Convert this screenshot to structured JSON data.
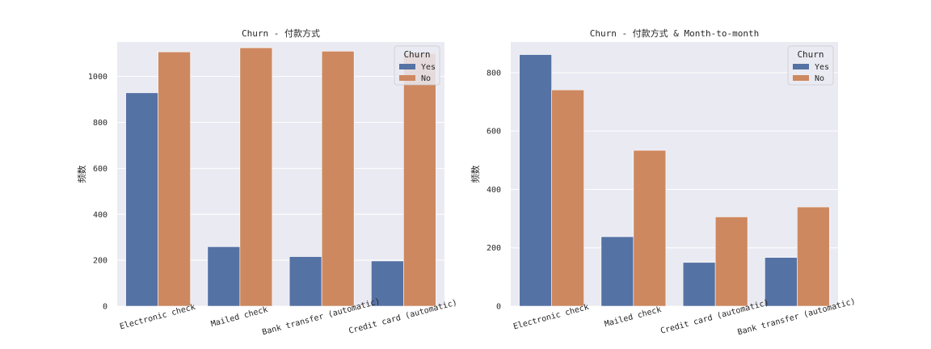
{
  "colors": {
    "yes": "#5572a4",
    "no": "#cd8860",
    "plot_bg": "#eaeaf2",
    "grid": "#ffffff"
  },
  "chart_data": [
    {
      "type": "bar",
      "title": "Churn - 付款方式",
      "xlabel": "",
      "ylabel": "频数",
      "categories": [
        "Electronic check",
        "Mailed check",
        "Bank transfer (automatic)",
        "Credit card (automatic)"
      ],
      "series": [
        {
          "name": "Yes",
          "values": [
            929,
            259,
            216,
            197
          ]
        },
        {
          "name": "No",
          "values": [
            1107,
            1125,
            1110,
            1100
          ]
        }
      ],
      "ylim": [
        0,
        1150
      ],
      "yticks": [
        0,
        200,
        400,
        600,
        800,
        1000
      ],
      "grid": true,
      "legend": {
        "title": "Churn",
        "labels": [
          "Yes",
          "No"
        ],
        "position": "top-right"
      }
    },
    {
      "type": "bar",
      "title": "Churn - 付款方式 & Month-to-month",
      "xlabel": "",
      "ylabel": "频数",
      "categories": [
        "Electronic check",
        "Mailed check",
        "Credit card (automatic)",
        "Bank transfer (automatic)"
      ],
      "series": [
        {
          "name": "Yes",
          "values": [
            862,
            238,
            150,
            167
          ]
        },
        {
          "name": "No",
          "values": [
            741,
            534,
            306,
            340
          ]
        }
      ],
      "ylim": [
        0,
        905
      ],
      "yticks": [
        0,
        200,
        400,
        600,
        800
      ],
      "grid": true,
      "legend": {
        "title": "Churn",
        "labels": [
          "Yes",
          "No"
        ],
        "position": "top-right"
      }
    }
  ]
}
